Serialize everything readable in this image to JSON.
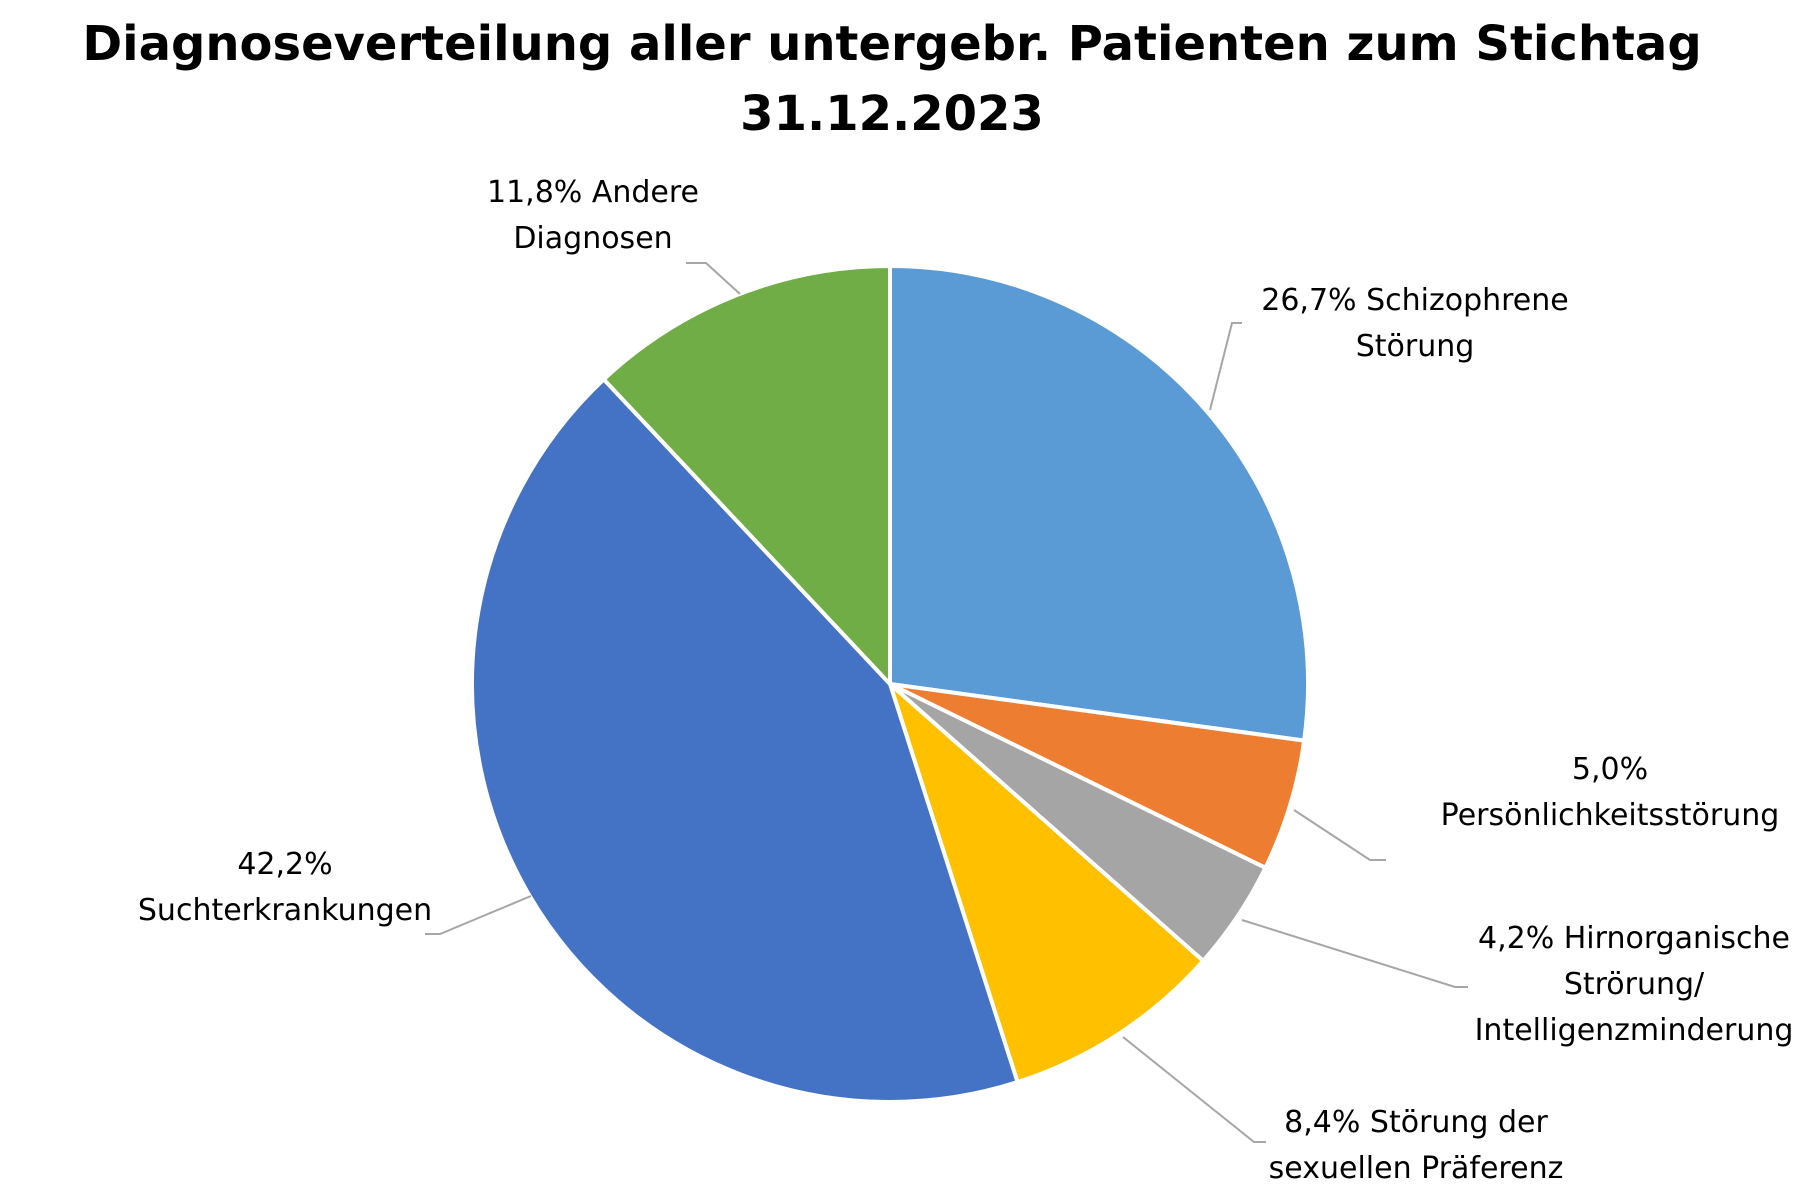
{
  "chart_data": {
    "type": "pie",
    "title_lines": [
      "Diagnoseverteilung aller untergebr. Patienten zum Stichtag",
      "31.12.2023"
    ],
    "unit": "%",
    "slices": [
      {
        "name": "Schizophrene Störung",
        "value": 26.7,
        "color": "#5b9bd5",
        "label_lines": [
          "26,7% Schizophrene",
          "Störung"
        ]
      },
      {
        "name": "Persönlichkeitsstörung",
        "value": 5.0,
        "color": "#ed7d31",
        "label_lines": [
          "5,0%",
          "Persönlichkeitsstörung"
        ]
      },
      {
        "name": "Hirnorganische Strörung/ Intelligenzminderung",
        "value": 4.2,
        "color": "#a5a5a5",
        "label_lines": [
          "4,2% Hirnorganische",
          "Strörung/",
          "Intelligenzminderung"
        ]
      },
      {
        "name": "Störung der sexuellen Präferenz",
        "value": 8.4,
        "color": "#ffc000",
        "label_lines": [
          "8,4% Störung der",
          "sexuellen Präferenz"
        ]
      },
      {
        "name": "Suchterkrankungen",
        "value": 42.2,
        "color": "#4472c4",
        "label_lines": [
          "42,2%",
          "Suchterkrankungen"
        ]
      },
      {
        "name": "Andere Diagnosen",
        "value": 11.8,
        "color": "#70ad47",
        "label_lines": [
          "11,8% Andere",
          "Diagnosen"
        ]
      }
    ],
    "start_angle_deg": 0,
    "direction": "clockwise",
    "legend": "none"
  }
}
